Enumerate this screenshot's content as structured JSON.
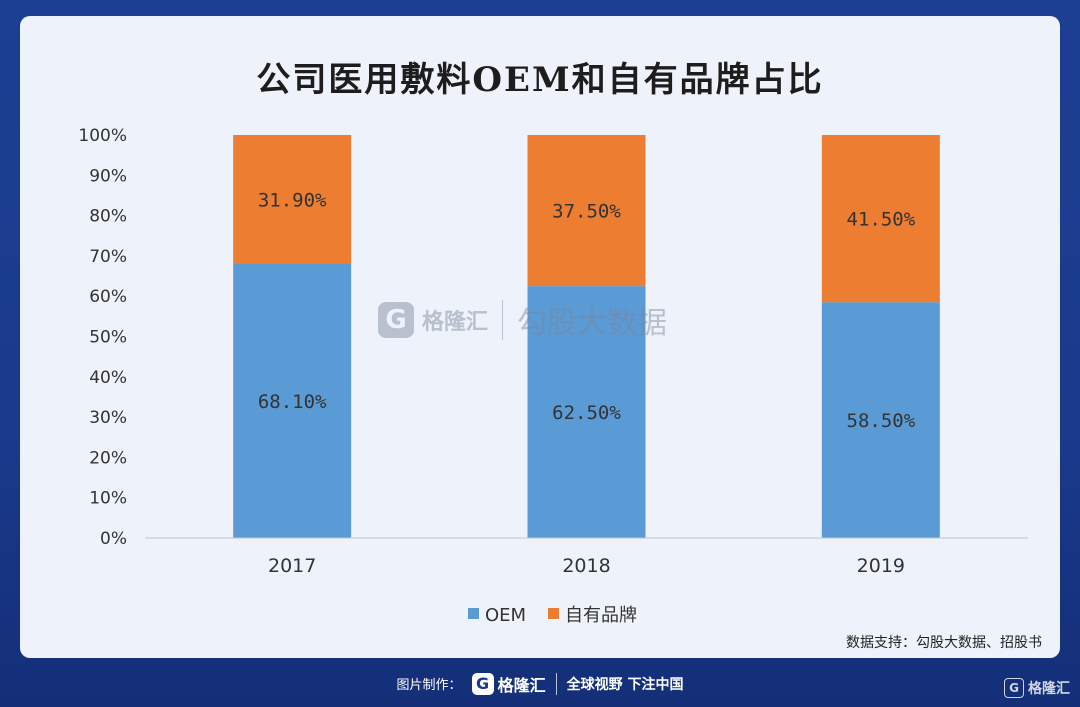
{
  "chart_data": {
    "type": "bar",
    "stacked": true,
    "title": "公司医用敷料OEM和自有品牌占比",
    "categories": [
      "2017",
      "2018",
      "2019"
    ],
    "series": [
      {
        "name": "OEM",
        "values": [
          68.1,
          62.5,
          58.5
        ],
        "labels": [
          "68.10%",
          "62.50%",
          "58.50%"
        ],
        "color": "#5b9bd5"
      },
      {
        "name": "自有品牌",
        "values": [
          31.9,
          37.5,
          41.5
        ],
        "labels": [
          "31.90%",
          "37.50%",
          "41.50%"
        ],
        "color": "#ed7d31"
      }
    ],
    "ylim": [
      0,
      100
    ],
    "yticks": [
      "0%",
      "10%",
      "20%",
      "30%",
      "40%",
      "50%",
      "60%",
      "70%",
      "80%",
      "90%",
      "100%"
    ],
    "legend_position": "bottom",
    "grid": false
  },
  "source": "数据支持：勾股大数据、招股书",
  "watermark": {
    "logo_letter": "G",
    "brand": "格隆汇",
    "text": "勾股大数据"
  },
  "footer": {
    "made_by": "图片制作：",
    "logo_letter": "G",
    "brand": "格隆汇",
    "slogan": "全球视野 下注中国"
  },
  "corner_logo": {
    "logo_letter": "G",
    "brand": "格隆汇"
  }
}
